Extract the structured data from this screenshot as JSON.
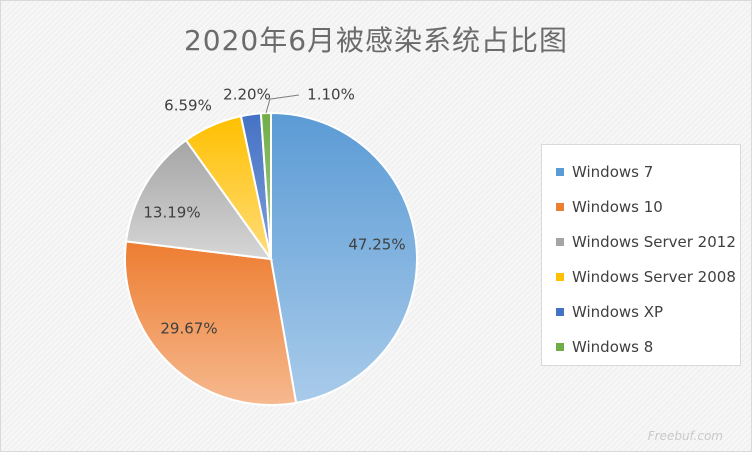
{
  "chart_data": {
    "type": "pie",
    "title": "2020年6月被感染系统占比图",
    "categories": [
      "Windows 7",
      "Windows 10",
      "Windows Server 2012",
      "Windows Server 2008",
      "Windows XP",
      "Windows 8"
    ],
    "values": [
      47.25,
      29.67,
      13.19,
      6.59,
      2.2,
      1.1
    ],
    "data_labels": [
      "47.25%",
      "29.67%",
      "13.19%",
      "6.59%",
      "2.20%",
      "1.10%"
    ],
    "colors": [
      [
        "#5b9bd5",
        "#a9cbea"
      ],
      [
        "#ed7d31",
        "#f6b98f"
      ],
      [
        "#a5a5a5",
        "#d6d6d6"
      ],
      [
        "#ffc000",
        "#ffdc7a"
      ],
      [
        "#4472c4",
        "#7f9ed9"
      ],
      [
        "#70ad47",
        "#a3cd88"
      ]
    ],
    "legend_position": "right",
    "start_angle": "top, clockwise"
  },
  "watermark": "Freebuf.com"
}
